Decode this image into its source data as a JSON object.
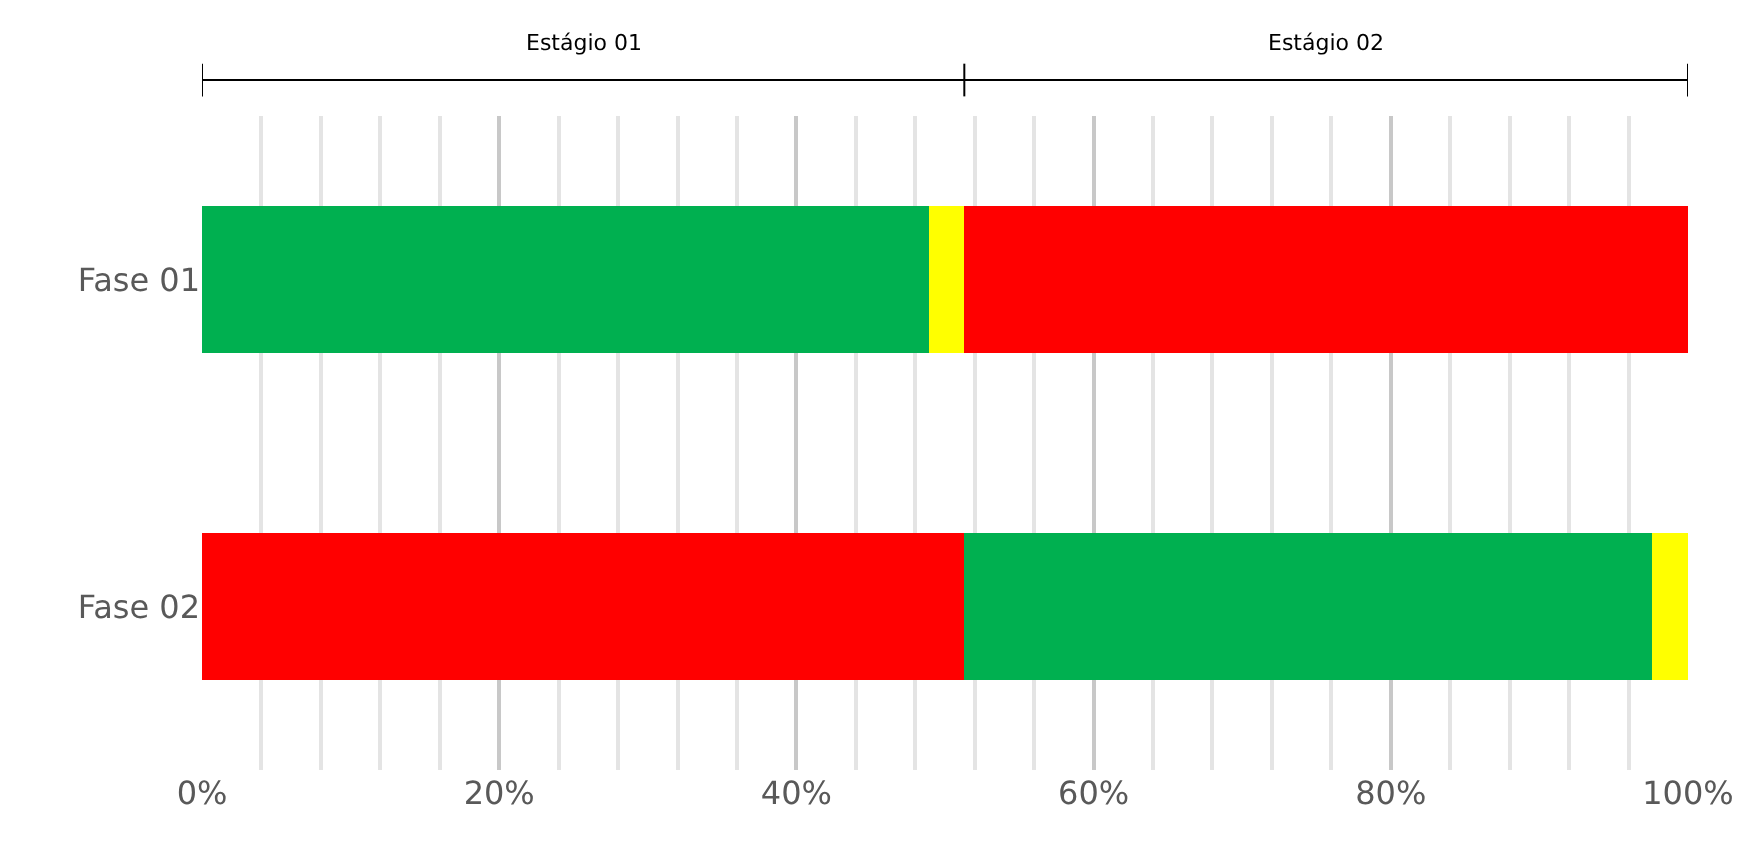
{
  "chart_data": {
    "type": "bar",
    "orientation": "horizontal",
    "stacked": true,
    "categories": [
      "Fase 01",
      "Fase 02"
    ],
    "series": [
      {
        "values": [
          48.9,
          51.3
        ],
        "colors": [
          "#00b050",
          "#ff0000"
        ]
      },
      {
        "values": [
          2.4,
          46.3
        ],
        "colors": [
          "#ffff00",
          "#00b050"
        ]
      },
      {
        "values": [
          48.7,
          2.4
        ],
        "colors": [
          "#ff0000",
          "#ffff00"
        ]
      }
    ],
    "xlim": [
      0,
      100
    ],
    "xticks": [
      {
        "value": 0,
        "label": "0%"
      },
      {
        "value": 20,
        "label": "20%"
      },
      {
        "value": 40,
        "label": "40%"
      },
      {
        "value": 60,
        "label": "60%"
      },
      {
        "value": 80,
        "label": "80%"
      },
      {
        "value": 100,
        "label": "100%"
      }
    ],
    "annotations": [
      "Estágio 01",
      "Estágio 02"
    ],
    "grid": "x"
  }
}
